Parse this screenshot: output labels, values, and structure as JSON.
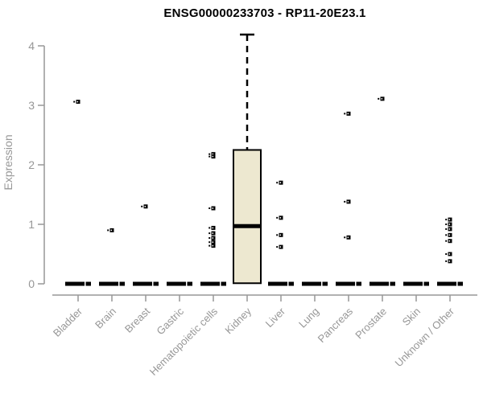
{
  "chart_data": {
    "type": "boxplot",
    "title": "ENSG00000233703 - RP11-20E23.1",
    "ylabel": "Expression",
    "xlabel": "",
    "ylim": [
      0,
      4.25
    ],
    "yticks": [
      0,
      1,
      2,
      3,
      4
    ],
    "grid": false,
    "legend": false,
    "categories": [
      "Bladder",
      "Brain",
      "Breast",
      "Gastric",
      "Hematopoietic cells",
      "Kidney",
      "Liver",
      "Lung",
      "Pancreas",
      "Prostate",
      "Skin",
      "Unknown / Other"
    ],
    "boxes": [
      {
        "category": "Bladder",
        "q1": 0,
        "median": 0,
        "q3": 0,
        "whisker_low": 0,
        "whisker_high": 0,
        "outliers": [
          3.06
        ]
      },
      {
        "category": "Brain",
        "q1": 0,
        "median": 0,
        "q3": 0,
        "whisker_low": 0,
        "whisker_high": 0,
        "outliers": [
          0.9
        ]
      },
      {
        "category": "Breast",
        "q1": 0,
        "median": 0,
        "q3": 0,
        "whisker_low": 0,
        "whisker_high": 0,
        "outliers": [
          1.3
        ]
      },
      {
        "category": "Gastric",
        "q1": 0,
        "median": 0,
        "q3": 0,
        "whisker_low": 0,
        "whisker_high": 0,
        "outliers": []
      },
      {
        "category": "Hematopoietic cells",
        "q1": 0,
        "median": 0,
        "q3": 0,
        "whisker_low": 0,
        "whisker_high": 0,
        "outliers": [
          2.18,
          2.14,
          1.27,
          0.94,
          0.85,
          0.77,
          0.7,
          0.64
        ]
      },
      {
        "category": "Kidney",
        "q1": 0.01,
        "median": 0.97,
        "q3": 2.25,
        "whisker_low": 0.01,
        "whisker_high": 4.19,
        "outliers": []
      },
      {
        "category": "Liver",
        "q1": 0,
        "median": 0,
        "q3": 0,
        "whisker_low": 0,
        "whisker_high": 0,
        "outliers": [
          1.7,
          1.11,
          0.82,
          0.62
        ]
      },
      {
        "category": "Lung",
        "q1": 0,
        "median": 0,
        "q3": 0,
        "whisker_low": 0,
        "whisker_high": 0,
        "outliers": []
      },
      {
        "category": "Pancreas",
        "q1": 0,
        "median": 0,
        "q3": 0,
        "whisker_low": 0,
        "whisker_high": 0,
        "outliers": [
          2.86,
          1.38,
          0.78
        ]
      },
      {
        "category": "Prostate",
        "q1": 0,
        "median": 0,
        "q3": 0,
        "whisker_low": 0,
        "whisker_high": 0,
        "outliers": [
          3.11
        ]
      },
      {
        "category": "Skin",
        "q1": 0,
        "median": 0,
        "q3": 0,
        "whisker_low": 0,
        "whisker_high": 0,
        "outliers": []
      },
      {
        "category": "Unknown / Other",
        "q1": 0,
        "median": 0,
        "q3": 0,
        "whisker_low": 0,
        "whisker_high": 0,
        "outliers": [
          1.08,
          1.0,
          0.92,
          0.82,
          0.72,
          0.5,
          0.38
        ]
      }
    ],
    "colors": {
      "box_fill": "#ede8d0",
      "box_border": "#000000",
      "median": "#000000",
      "whisker": "#000000",
      "outlier": "#000000",
      "axis": "#979797",
      "tick_label": "#979797",
      "title": "#000000",
      "background": "#ffffff"
    }
  }
}
